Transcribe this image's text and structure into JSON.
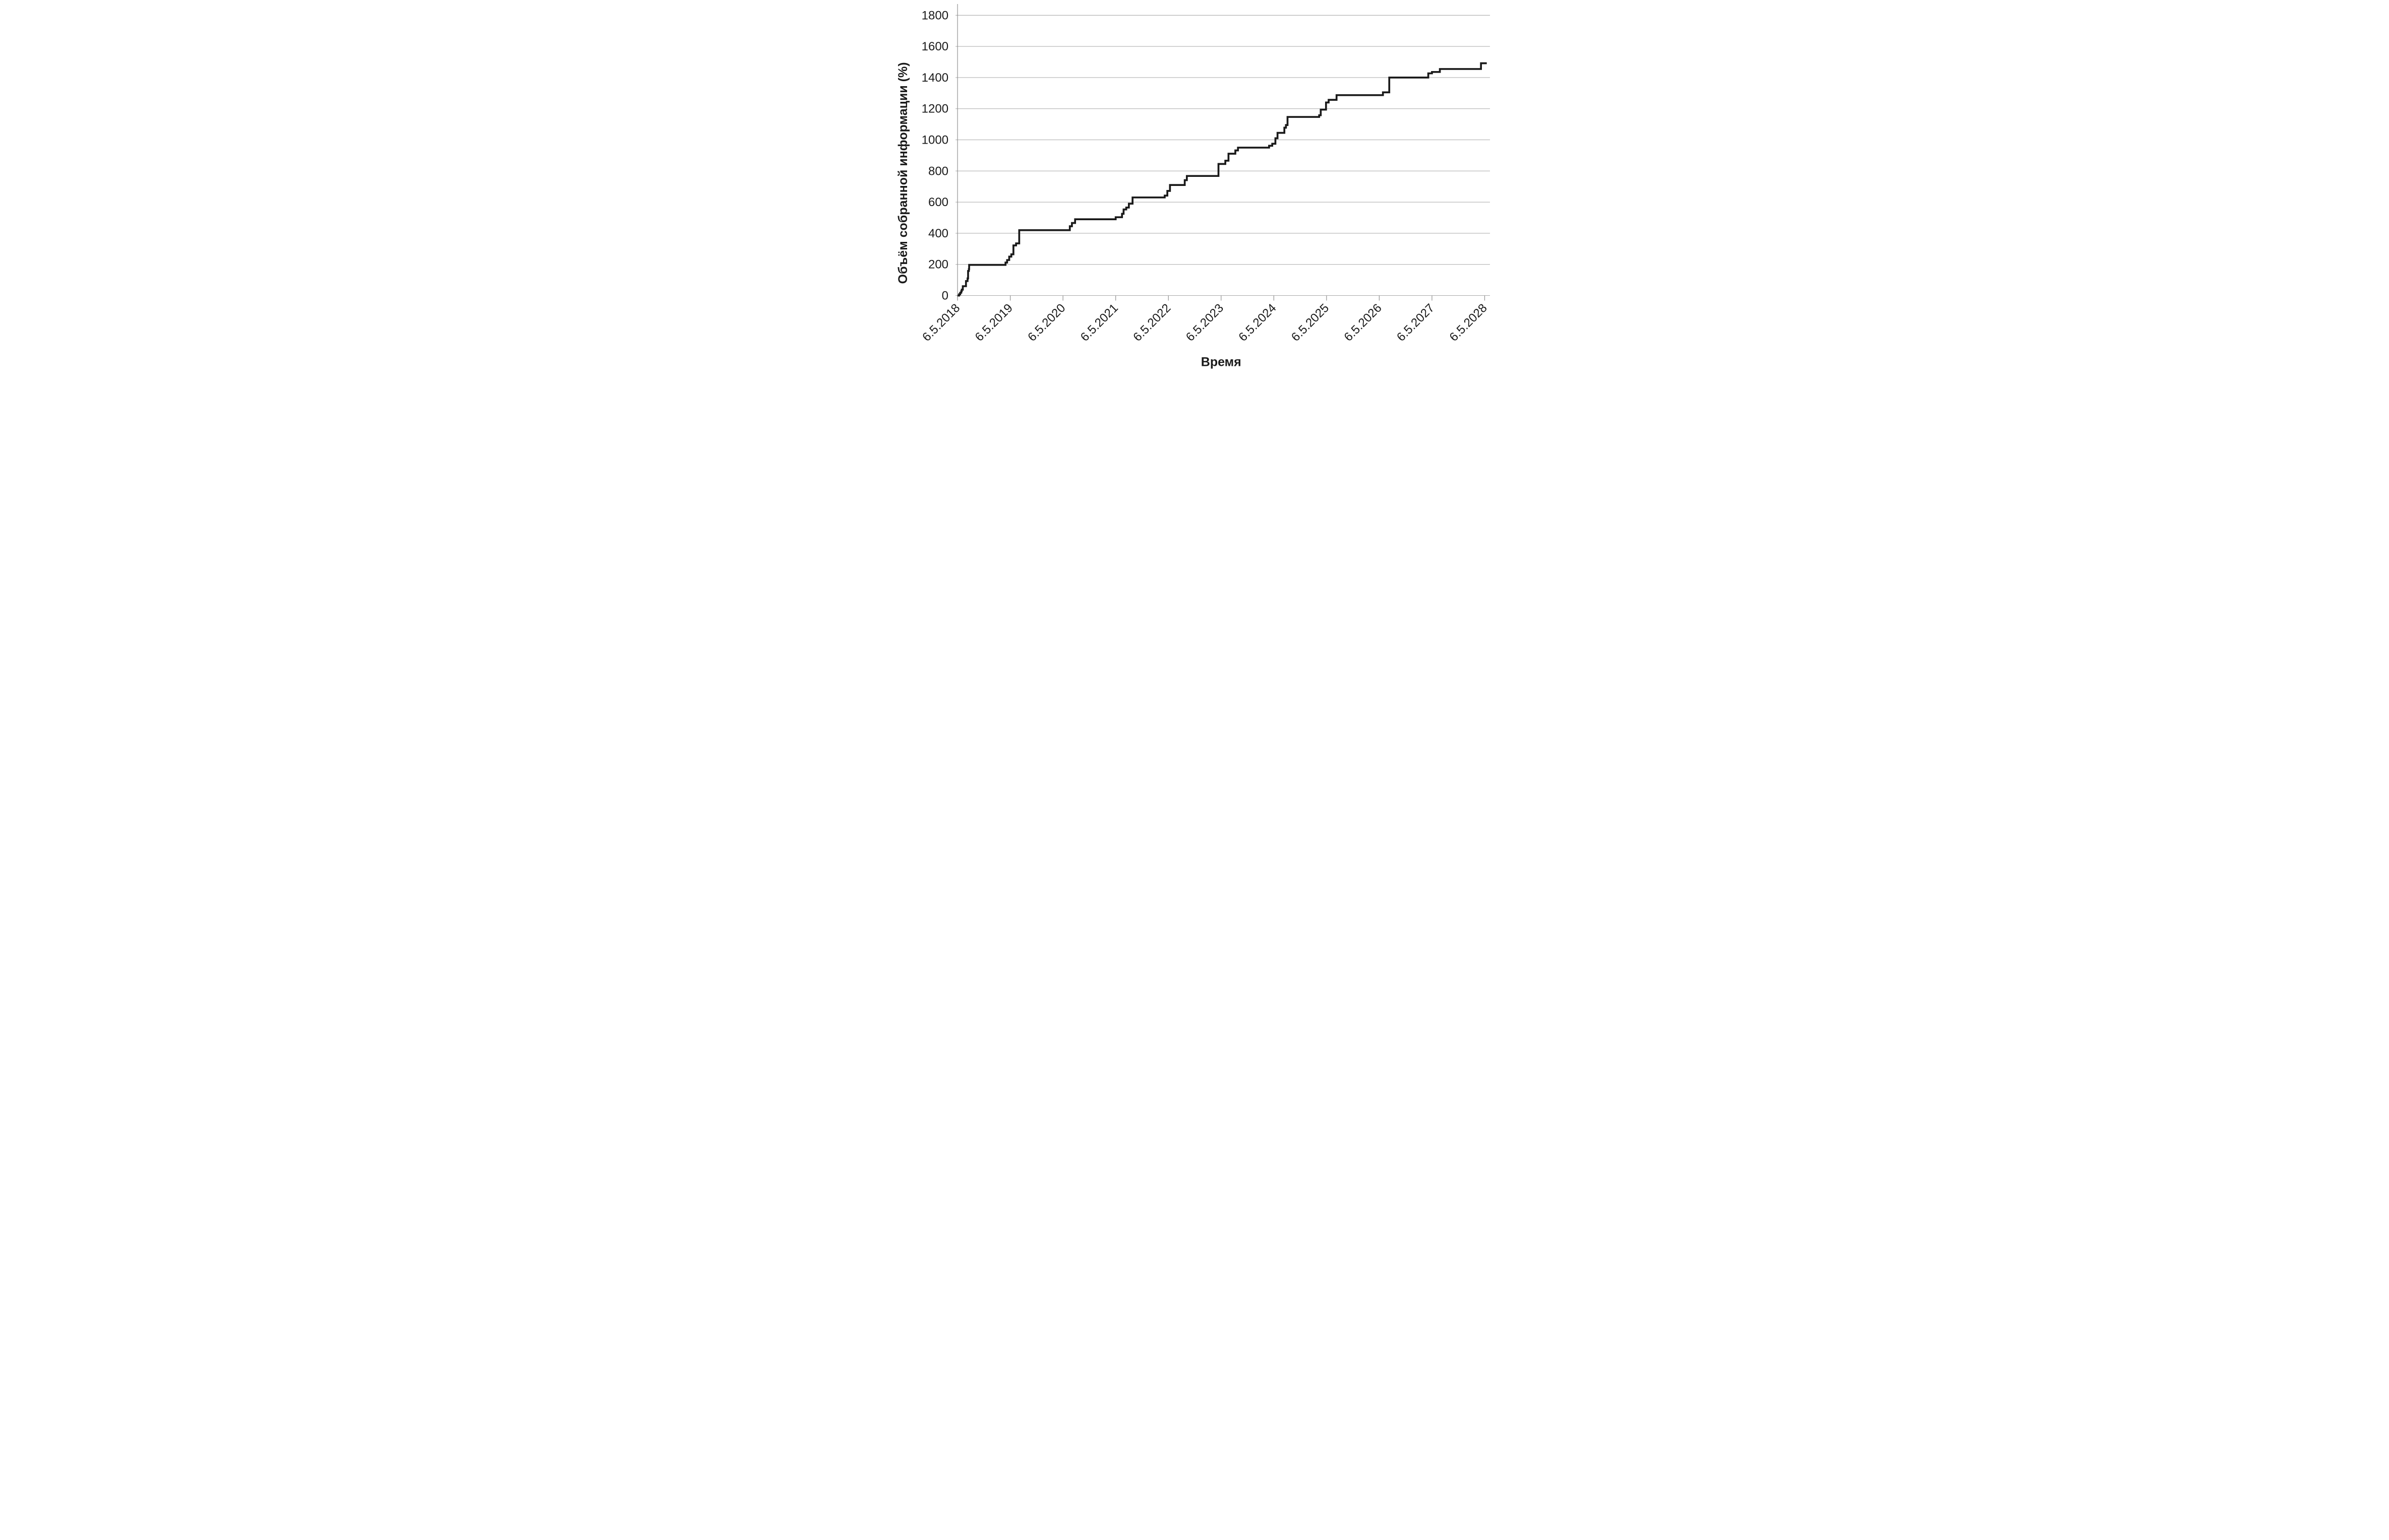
{
  "page": {
    "background_color": "#ffffff"
  },
  "chart_data": {
    "type": "line",
    "variant": "step-cumulative",
    "title": "",
    "xlabel": "Время",
    "ylabel": "Объём собранной информации (%)",
    "legend": "none",
    "grid": "horizontal-only",
    "line_color": "#1a1a1a",
    "grid_color": "#a9a9a9",
    "axis_color": "#8f8f8f",
    "x_tick_labels": [
      "6.5.2018",
      "6.5.2019",
      "6.5.2020",
      "6.5.2021",
      "6.5.2022",
      "6.5.2023",
      "6.5.2024",
      "6.5.2025",
      "6.5.2026",
      "6.5.2027",
      "6.5.2028"
    ],
    "x_tick_positions_years": [
      0,
      1,
      2,
      3,
      4,
      5,
      6,
      7,
      8,
      9,
      10
    ],
    "y_ticks": [
      0,
      200,
      400,
      600,
      800,
      1000,
      1200,
      1400,
      1600,
      1800
    ],
    "x_range_years": [
      0,
      10.1
    ],
    "y_range": [
      0,
      1800
    ],
    "series": [
      {
        "name": "Объём собранной информации (%)",
        "color": "#1a1a1a",
        "end_t": 10.04,
        "points": [
          [
            0.0,
            0
          ],
          [
            0.03,
            8
          ],
          [
            0.05,
            18
          ],
          [
            0.07,
            28
          ],
          [
            0.08,
            38
          ],
          [
            0.1,
            60
          ],
          [
            0.16,
            93
          ],
          [
            0.19,
            110
          ],
          [
            0.2,
            158
          ],
          [
            0.215,
            170
          ],
          [
            0.22,
            197
          ],
          [
            0.91,
            212
          ],
          [
            0.94,
            228
          ],
          [
            0.98,
            250
          ],
          [
            1.02,
            265
          ],
          [
            1.06,
            322
          ],
          [
            1.11,
            335
          ],
          [
            1.17,
            420
          ],
          [
            2.13,
            445
          ],
          [
            2.17,
            466
          ],
          [
            2.23,
            490
          ],
          [
            3.0,
            503
          ],
          [
            3.12,
            525
          ],
          [
            3.15,
            553
          ],
          [
            3.2,
            565
          ],
          [
            3.25,
            590
          ],
          [
            3.32,
            630
          ],
          [
            3.93,
            642
          ],
          [
            3.98,
            672
          ],
          [
            4.03,
            710
          ],
          [
            4.31,
            741
          ],
          [
            4.35,
            768
          ],
          [
            4.95,
            845
          ],
          [
            5.08,
            866
          ],
          [
            5.14,
            911
          ],
          [
            5.27,
            932
          ],
          [
            5.32,
            950
          ],
          [
            5.91,
            962
          ],
          [
            5.97,
            975
          ],
          [
            6.03,
            1010
          ],
          [
            6.07,
            1045
          ],
          [
            6.2,
            1078
          ],
          [
            6.23,
            1095
          ],
          [
            6.26,
            1147
          ],
          [
            6.86,
            1158
          ],
          [
            6.89,
            1194
          ],
          [
            6.99,
            1240
          ],
          [
            7.04,
            1257
          ],
          [
            7.19,
            1287
          ],
          [
            8.07,
            1305
          ],
          [
            8.19,
            1400
          ],
          [
            8.93,
            1427
          ],
          [
            9.0,
            1436
          ],
          [
            9.15,
            1455
          ],
          [
            9.93,
            1492
          ]
        ]
      }
    ]
  }
}
